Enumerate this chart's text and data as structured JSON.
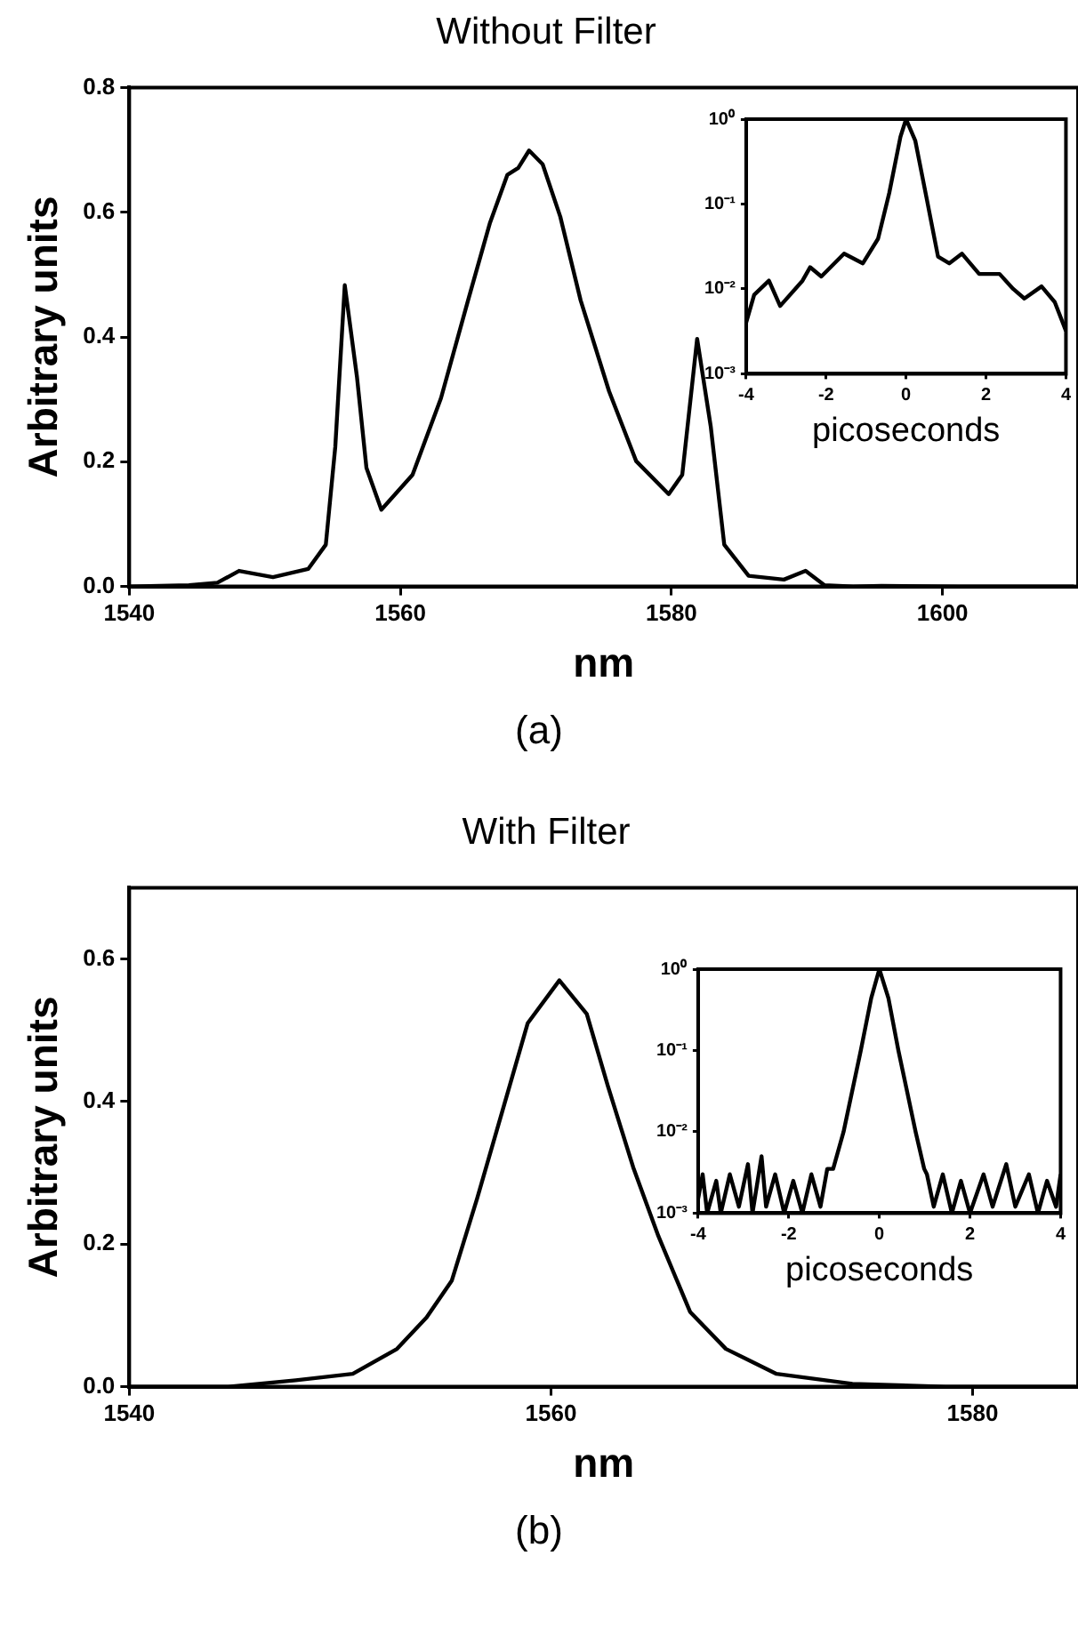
{
  "chart_data": [
    {
      "type": "line",
      "title": "Without Filter",
      "xlabel": "nm",
      "ylabel": "Arbitrary units",
      "annotations": [
        "(a)"
      ],
      "marker": "none",
      "xlim": [
        1540,
        1610
      ],
      "ylim": [
        0,
        0.8
      ],
      "xticks": [
        1540,
        1560,
        1580,
        1600
      ],
      "yticks": [
        {
          "value": 0,
          "label": "0.0"
        },
        {
          "value": 0.2,
          "label": "0.2"
        },
        {
          "value": 0.4,
          "label": "0.4"
        },
        {
          "value": 0.6,
          "label": "0.6"
        },
        {
          "value": 0.8,
          "label": "0.8"
        }
      ],
      "series": [
        {
          "color": "#000000",
          "x": [
            1540,
            1544.4,
            1546.5,
            1548.1,
            1550.6,
            1553.2,
            1554.5,
            1555.2,
            1555.9,
            1556.8,
            1557.5,
            1558.6,
            1560.9,
            1563,
            1565,
            1566.6,
            1567.9,
            1568.7,
            1569.5,
            1570.5,
            1571.8,
            1573.3,
            1575.4,
            1577.4,
            1579.8,
            1580.8,
            1581.9,
            1582.9,
            1583.9,
            1585.7,
            1588.3,
            1589.9,
            1591.3,
            1593.4,
            1595.5,
            1601.2,
            1609.7
          ],
          "values": [
            0,
            0.002,
            0.006,
            0.025,
            0.015,
            0.028,
            0.067,
            0.224,
            0.483,
            0.336,
            0.19,
            0.123,
            0.179,
            0.302,
            0.459,
            0.582,
            0.66,
            0.671,
            0.699,
            0.677,
            0.593,
            0.459,
            0.313,
            0.201,
            0.148,
            0.179,
            0.397,
            0.257,
            0.067,
            0.017,
            0.011,
            0.025,
            0.002,
            0,
            0.001,
            0,
            0
          ]
        }
      ]
    },
    {
      "type": "line",
      "xlabel": "picoseconds",
      "log": "y",
      "marker": "none",
      "xlim": [
        -4,
        4
      ],
      "ylim": [
        0.001,
        1
      ],
      "xticks": [
        -4,
        -2,
        0,
        2,
        4
      ],
      "yticks": [
        {
          "value": 0.001,
          "label": "10⁻³"
        },
        {
          "value": 0.01,
          "label": "10⁻²"
        },
        {
          "value": 0.1,
          "label": "10⁻¹"
        },
        {
          "value": 1,
          "label": "10⁰"
        }
      ],
      "series": [
        {
          "color": "#000000",
          "x": [
            -4,
            -3.8,
            -3.43,
            -3.15,
            -2.59,
            -2.4,
            -2.12,
            -1.55,
            -1.08,
            -0.7,
            -0.42,
            -0.14,
            0,
            0.23,
            0.51,
            0.8,
            1.08,
            1.4,
            1.83,
            2.34,
            2.68,
            2.96,
            3.39,
            3.72,
            4
          ],
          "values": [
            0.004,
            0.0085,
            0.0125,
            0.0063,
            0.0125,
            0.018,
            0.014,
            0.026,
            0.02,
            0.039,
            0.135,
            0.62,
            1,
            0.56,
            0.12,
            0.024,
            0.02,
            0.026,
            0.015,
            0.015,
            0.01,
            0.0077,
            0.0107,
            0.007,
            0.0032
          ]
        }
      ]
    },
    {
      "type": "line",
      "title": "With Filter",
      "xlabel": "nm",
      "ylabel": "Arbitrary units",
      "annotations": [
        "(b)"
      ],
      "marker": "none",
      "xlim": [
        1540,
        1585
      ],
      "ylim": [
        0,
        0.7
      ],
      "xticks": [
        1540,
        1560,
        1580
      ],
      "yticks": [
        {
          "value": 0,
          "label": "0.0"
        },
        {
          "value": 0.2,
          "label": "0.2"
        },
        {
          "value": 0.4,
          "label": "0.4"
        },
        {
          "value": 0.6,
          "label": "0.6"
        }
      ],
      "series": [
        {
          "color": "#000000",
          "x": [
            1540,
            1544.7,
            1547.9,
            1550.6,
            1552.7,
            1554.1,
            1555.3,
            1556.5,
            1557.7,
            1558.9,
            1560.4,
            1561.7,
            1562.7,
            1563.9,
            1565.1,
            1566.6,
            1568.3,
            1570.7,
            1574.3,
            1578.7,
            1584.9
          ],
          "values": [
            0,
            0,
            0.009,
            0.018,
            0.053,
            0.097,
            0.149,
            0.264,
            0.387,
            0.51,
            0.57,
            0.523,
            0.422,
            0.308,
            0.211,
            0.105,
            0.053,
            0.018,
            0.004,
            0,
            0
          ]
        }
      ]
    },
    {
      "type": "line",
      "xlabel": "picoseconds",
      "log": "y",
      "marker": "none",
      "xlim": [
        -4,
        4
      ],
      "ylim": [
        0.001,
        1
      ],
      "xticks": [
        -4,
        -2,
        0,
        2,
        4
      ],
      "yticks": [
        {
          "value": 0.001,
          "label": "10⁻³"
        },
        {
          "value": 0.01,
          "label": "10⁻²"
        },
        {
          "value": 0.1,
          "label": "10⁻¹"
        },
        {
          "value": 1,
          "label": "10⁰"
        }
      ],
      "series": [
        {
          "color": "#000000",
          "x": [
            -4,
            -3.9,
            -3.8,
            -3.6,
            -3.5,
            -3.3,
            -3.1,
            -2.9,
            -2.8,
            -2.6,
            -2.5,
            -2.3,
            -2.1,
            -1.9,
            -1.7,
            -1.5,
            -1.3,
            -1.15,
            -1.02,
            -0.79,
            -0.41,
            -0.18,
            0,
            0.2,
            0.42,
            0.8,
            0.99,
            1.05,
            1.2,
            1.4,
            1.6,
            1.8,
            2,
            2.3,
            2.5,
            2.8,
            3,
            3.3,
            3.5,
            3.7,
            3.9,
            4
          ],
          "values": [
            0.0015,
            0.003,
            0.001,
            0.0025,
            0.001,
            0.003,
            0.0012,
            0.004,
            0.001,
            0.005,
            0.0012,
            0.003,
            0.001,
            0.0025,
            0.001,
            0.003,
            0.0012,
            0.0035,
            0.0035,
            0.01,
            0.1,
            0.44,
            1,
            0.44,
            0.1,
            0.01,
            0.0035,
            0.003,
            0.0012,
            0.003,
            0.001,
            0.0025,
            0.001,
            0.003,
            0.0012,
            0.004,
            0.0012,
            0.003,
            0.001,
            0.0025,
            0.0012,
            0.003
          ]
        }
      ]
    }
  ]
}
